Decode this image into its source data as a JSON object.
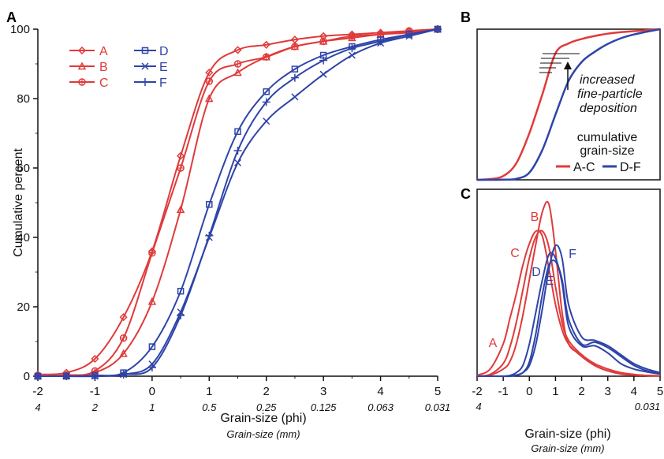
{
  "colors": {
    "red": "#e03a3a",
    "blue": "#2e44a8",
    "axis": "#111111"
  },
  "panels": {
    "a": "A",
    "b": "B",
    "c": "C"
  },
  "x_axis": {
    "title": "Grain-size (phi)",
    "subtitle": "Grain-size (mm)",
    "phi_ticks": [
      "-2",
      "-1",
      "0",
      "1",
      "2",
      "3",
      "4",
      "5"
    ],
    "mm_ticks": [
      "4",
      "2",
      "1",
      "0.5",
      "0.25",
      "0.125",
      "0.063",
      "0.031"
    ],
    "c_phi_ticks": [
      "-2",
      "-1",
      "0",
      "1",
      "2",
      "3",
      "4",
      "5"
    ],
    "c_mm_ticks": [
      "4",
      "0.031"
    ]
  },
  "y_axis": {
    "title": "Cumulative percent",
    "ticks": [
      "0",
      "20",
      "40",
      "60",
      "80",
      "100"
    ]
  },
  "panel_b": {
    "annotation": [
      "increased",
      "fine-particle",
      "deposition"
    ],
    "legend_title": [
      "cumulative",
      "grain-size"
    ],
    "legend_items": [
      "A-C",
      "D-F"
    ]
  },
  "chart_data": [
    {
      "type": "line",
      "panel": "A",
      "xlabel": "Grain-size (phi)",
      "ylabel": "Cumulative percent",
      "xlim": [
        -2,
        5
      ],
      "ylim": [
        0,
        100
      ],
      "legend_position": "top-left",
      "x": [
        -2,
        -1.5,
        -1,
        -0.5,
        0,
        0.5,
        1,
        1.5,
        2,
        2.5,
        3,
        3.5,
        4,
        4.5,
        5
      ],
      "series": [
        {
          "name": "A",
          "color": "red",
          "marker": "diamond",
          "values": [
            0.5,
            1,
            5,
            17,
            36,
            63.5,
            87.5,
            94,
            95.5,
            97,
            98,
            98.5,
            99,
            99.5,
            100
          ]
        },
        {
          "name": "B",
          "color": "red",
          "marker": "triangle",
          "values": [
            0,
            0.2,
            1,
            6.5,
            21.5,
            48,
            80,
            87.5,
            92,
            95,
            96.5,
            97.5,
            98.5,
            99,
            100
          ]
        },
        {
          "name": "C",
          "color": "red",
          "marker": "circle-plus",
          "values": [
            0,
            0.3,
            1.5,
            11,
            35.5,
            60,
            85,
            90,
            92,
            95,
            96.5,
            98,
            98.5,
            99.5,
            100
          ]
        },
        {
          "name": "D",
          "color": "blue",
          "marker": "square",
          "values": [
            0,
            0,
            0.2,
            1,
            8.5,
            24.5,
            49.5,
            70.5,
            82,
            88.5,
            92.5,
            95,
            97,
            98.5,
            100
          ]
        },
        {
          "name": "E",
          "color": "blue",
          "marker": "x",
          "values": [
            0,
            0,
            0,
            0.5,
            3.5,
            18.5,
            40,
            61.5,
            73.5,
            80.5,
            87,
            92.5,
            96,
            98,
            100
          ]
        },
        {
          "name": "F",
          "color": "blue",
          "marker": "plus",
          "values": [
            0,
            0,
            0,
            0.5,
            2.5,
            17.5,
            40.5,
            65,
            79,
            86,
            91,
            94.5,
            96.5,
            98.5,
            100
          ]
        }
      ]
    },
    {
      "type": "line",
      "panel": "B",
      "xlim": [
        -2,
        5
      ],
      "ylim": [
        0,
        100
      ],
      "x": [
        -2,
        -1.5,
        -1,
        -0.5,
        0,
        0.5,
        1,
        1.5,
        2,
        2.5,
        3,
        3.5,
        4,
        4.5,
        5
      ],
      "series": [
        {
          "name": "A-C",
          "color": "red",
          "values": [
            0,
            0.5,
            2.5,
            11,
            31,
            57,
            84,
            90.5,
            93.5,
            95.5,
            97,
            98,
            98.7,
            99.3,
            100
          ]
        },
        {
          "name": "D-F",
          "color": "blue",
          "values": [
            0,
            0,
            0.1,
            0.7,
            4.8,
            20,
            43.3,
            65.7,
            78.2,
            85,
            90.2,
            94,
            96.5,
            98.3,
            100
          ]
        }
      ]
    },
    {
      "type": "line",
      "panel": "C",
      "xlim": [
        -2,
        5
      ],
      "x": [
        -2,
        -1.5,
        -1,
        -0.75,
        -0.5,
        -0.25,
        0,
        0.25,
        0.5,
        0.75,
        1,
        1.25,
        1.5,
        2,
        2.5,
        3,
        3.5,
        4,
        4.5,
        5
      ],
      "series": [
        {
          "name": "A",
          "color": "red",
          "values": [
            0.3,
            2,
            9,
            16,
            23,
            31,
            37,
            40.5,
            39,
            30,
            20,
            13,
            9,
            5.5,
            3,
            1.5,
            0.8,
            0.4,
            0.2,
            0.1
          ]
        },
        {
          "name": "B",
          "color": "red",
          "values": [
            0,
            0.3,
            2,
            4,
            9,
            17,
            27,
            37,
            46,
            48,
            35,
            18,
            9,
            6,
            3,
            1.5,
            0.6,
            0.3,
            0.2,
            0.1
          ]
        },
        {
          "name": "C",
          "color": "red",
          "values": [
            0,
            0.5,
            3.5,
            8,
            15,
            24,
            33,
            39,
            40.5,
            36,
            25,
            15,
            10,
            6,
            3.5,
            2,
            1,
            0.5,
            0.2,
            0.1
          ]
        },
        {
          "name": "D",
          "color": "blue",
          "values": [
            0,
            0,
            0,
            0.2,
            1,
            3,
            9,
            18,
            27,
            34,
            33,
            26,
            14,
            8.5,
            8.5,
            6.5,
            3.5,
            2,
            1.2,
            0.6
          ]
        },
        {
          "name": "E",
          "color": "blue",
          "values": [
            0,
            0,
            0,
            0,
            0.3,
            1,
            4,
            12,
            23,
            31,
            32,
            27,
            16,
            9,
            9.5,
            8,
            5.5,
            3,
            1.5,
            0.8
          ]
        },
        {
          "name": "F",
          "color": "blue",
          "values": [
            0,
            0,
            0,
            0,
            0.3,
            1,
            3,
            9,
            19,
            30,
            36.5,
            33,
            20,
            11,
            10,
            8.5,
            6,
            3.5,
            2,
            1
          ]
        }
      ]
    }
  ]
}
